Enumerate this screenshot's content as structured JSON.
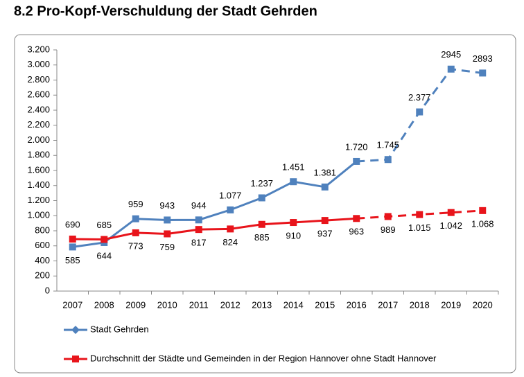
{
  "chart_data": {
    "type": "line",
    "title": "8.2 Pro-Kopf-Verschuldung der Stadt Gehrden",
    "categories": [
      "2007",
      "2008",
      "2009",
      "2010",
      "2011",
      "2012",
      "2013",
      "2014",
      "2015",
      "2016",
      "2017",
      "2018",
      "2019",
      "2020"
    ],
    "series": [
      {
        "name": "Stadt Gehrden",
        "color": "#4f81bd",
        "dashed_from": "2016",
        "values": [
          585,
          644,
          959,
          943,
          944,
          1077,
          1237,
          1451,
          1381,
          1720,
          1745,
          2377,
          2945,
          2893
        ],
        "value_labels": [
          "585",
          "644",
          "959",
          "943",
          "944",
          "1.077",
          "1.237",
          "1.451",
          "1.381",
          "1.720",
          "1.745",
          "2.377",
          "2945",
          "2893"
        ]
      },
      {
        "name": "Durchschnitt der Städte und Gemeinden in der Region Hannover ohne Stadt Hannover",
        "color": "#e8141b",
        "dashed_from": "2016",
        "values": [
          690,
          685,
          773,
          759,
          817,
          824,
          885,
          910,
          937,
          963,
          989,
          1015,
          1042,
          1068
        ],
        "value_labels": [
          "690",
          "685",
          "773",
          "759",
          "817",
          "824",
          "885",
          "910",
          "937",
          "963",
          "989",
          "1.015",
          "1.042",
          "1.068"
        ]
      }
    ],
    "ylim": [
      0,
      3200
    ],
    "yticks": [
      0,
      200,
      400,
      600,
      800,
      {
        "value": 1000,
        "label": "1.000"
      },
      {
        "value": 1200,
        "label": "1.200"
      },
      {
        "value": 1400,
        "label": "1.400"
      },
      {
        "value": 1600,
        "label": "1.600"
      },
      {
        "value": 1800,
        "label": "1.800"
      },
      {
        "value": 2000,
        "label": "2.000"
      },
      {
        "value": 2200,
        "label": "2.200"
      },
      {
        "value": 2400,
        "label": "2.400"
      },
      {
        "value": 2600,
        "label": "2.600"
      },
      {
        "value": 2800,
        "label": "2.800"
      },
      {
        "value": 3000,
        "label": "3.000"
      },
      {
        "value": 3200,
        "label": "3.200"
      }
    ],
    "grid": false
  }
}
